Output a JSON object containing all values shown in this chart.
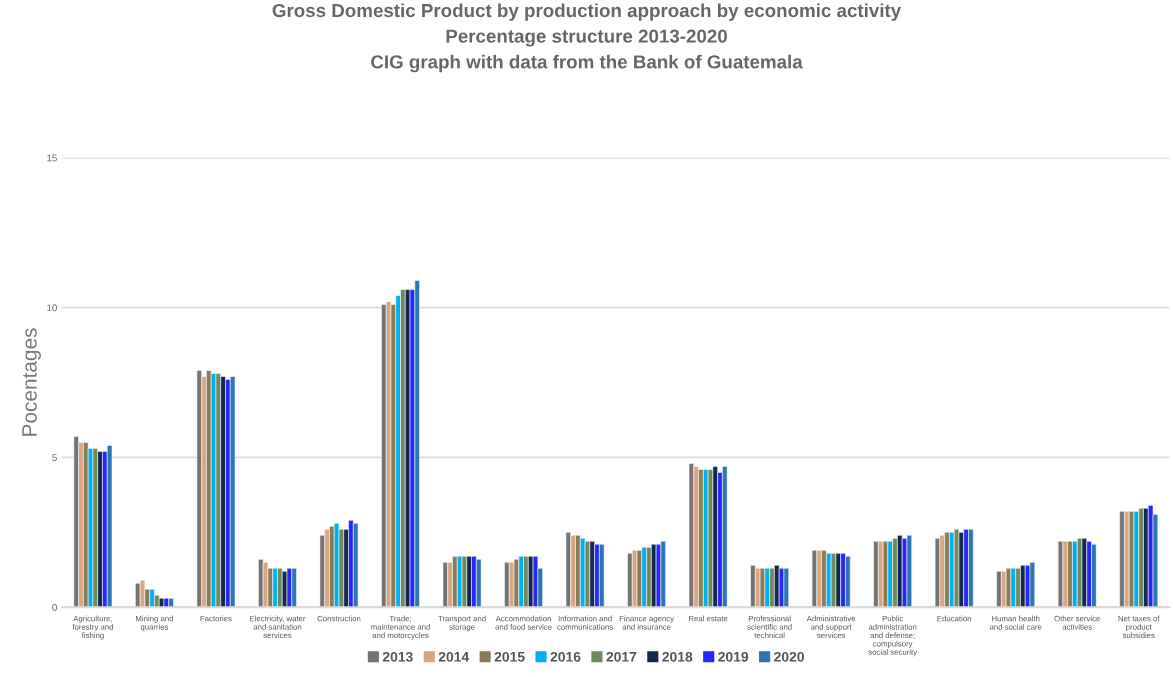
{
  "chart_data": {
    "type": "bar",
    "title": "Gross Domestic Product by production approach by economic activity\nPercentage structure 2013-2020\nCIG graph with data from the Bank of Guatemala",
    "ylabel": "Pocentages",
    "categories": [
      "Agriculture,\nforestry and\nfishing",
      "Mining and\nquarries",
      "Factories",
      "Electricity, water\nand sanitation\nservices",
      "Construction",
      "Trade;\nmaintenance and\nand motorcycles",
      "Transport and\nstorage",
      "Accommodation\nand food service",
      "Information and\ncommunications",
      "Finance agency\nand insurance",
      "Real estate",
      "Professional\nscientific and\ntechnical",
      "Administrative\nand support\nservices",
      "Public\nadministration\nand defense;\ncompulsory\nsocial security",
      "Education",
      "Human health\nand social care",
      "Other service\nactivities",
      "Net taxes of\nproduct\nsubsidies"
    ],
    "series": [
      {
        "name": "2013",
        "color": "#737373",
        "values": [
          5.7,
          0.8,
          7.9,
          1.6,
          2.4,
          10.1,
          1.5,
          1.5,
          2.5,
          1.8,
          4.8,
          1.4,
          1.9,
          2.2,
          2.3,
          1.2,
          2.2,
          3.2
        ]
      },
      {
        "name": "2014",
        "color": "#d9a681",
        "values": [
          5.5,
          0.9,
          7.7,
          1.5,
          2.6,
          10.2,
          1.5,
          1.5,
          2.4,
          1.9,
          4.7,
          1.3,
          1.9,
          2.2,
          2.4,
          1.2,
          2.2,
          3.2
        ]
      },
      {
        "name": "2015",
        "color": "#8b7b55",
        "values": [
          5.5,
          0.6,
          7.9,
          1.3,
          2.7,
          10.1,
          1.7,
          1.6,
          2.4,
          1.9,
          4.6,
          1.3,
          1.9,
          2.2,
          2.5,
          1.3,
          2.2,
          3.2
        ]
      },
      {
        "name": "2016",
        "color": "#00b0f0",
        "values": [
          5.3,
          0.6,
          7.8,
          1.3,
          2.8,
          10.4,
          1.7,
          1.7,
          2.3,
          2.0,
          4.6,
          1.3,
          1.8,
          2.2,
          2.5,
          1.3,
          2.2,
          3.2
        ]
      },
      {
        "name": "2017",
        "color": "#6e8b5e",
        "values": [
          5.3,
          0.4,
          7.8,
          1.3,
          2.6,
          10.6,
          1.7,
          1.7,
          2.2,
          2.0,
          4.6,
          1.3,
          1.8,
          2.3,
          2.6,
          1.3,
          2.3,
          3.3
        ]
      },
      {
        "name": "2018",
        "color": "#13294b",
        "values": [
          5.2,
          0.3,
          7.7,
          1.2,
          2.6,
          10.6,
          1.7,
          1.7,
          2.2,
          2.1,
          4.7,
          1.4,
          1.8,
          2.4,
          2.5,
          1.4,
          2.3,
          3.3
        ]
      },
      {
        "name": "2019",
        "color": "#2626ff",
        "values": [
          5.2,
          0.3,
          7.6,
          1.3,
          2.9,
          10.6,
          1.7,
          1.7,
          2.1,
          2.1,
          4.5,
          1.3,
          1.8,
          2.3,
          2.6,
          1.4,
          2.2,
          3.4
        ]
      },
      {
        "name": "2020",
        "color": "#2e75b6",
        "values": [
          5.4,
          0.3,
          7.7,
          1.3,
          2.8,
          10.9,
          1.6,
          1.3,
          2.1,
          2.2,
          4.7,
          1.3,
          1.7,
          2.4,
          2.6,
          1.5,
          2.1,
          3.1
        ]
      }
    ],
    "ylim": [
      0,
      15
    ],
    "yticks": [
      0,
      5,
      10,
      15
    ],
    "grid": "y",
    "legend": "bottom"
  }
}
